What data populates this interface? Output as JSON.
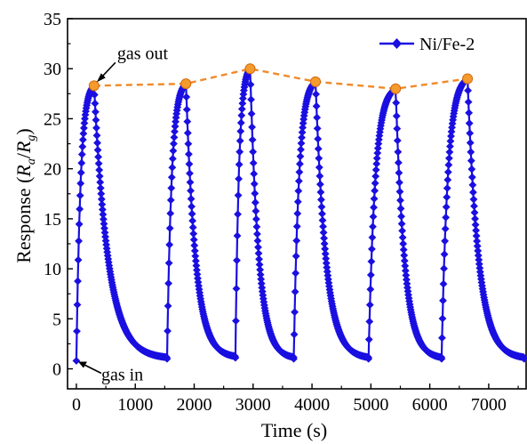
{
  "chart_data": {
    "type": "line",
    "xlabel": "Time (s)",
    "ylabel": {
      "prefix": "Response (",
      "r1": "R",
      "s1": "a",
      "slash": "/",
      "r2": "R",
      "s2": "g",
      "suffix": ")"
    },
    "xlim": [
      -150,
      7650
    ],
    "ylim": [
      -2,
      35
    ],
    "xticks": [
      0,
      1000,
      2000,
      3000,
      4000,
      5000,
      6000,
      7000
    ],
    "yticks": [
      0,
      5,
      10,
      15,
      20,
      25,
      30,
      35
    ],
    "legend": {
      "position": "top-right"
    },
    "colors": {
      "series": "#1a0fe0",
      "peak_line": "#f0892a",
      "peak_marker": "#f59a2c"
    },
    "annotations": [
      {
        "text": "gas out",
        "x": 300,
        "y": 28.3
      },
      {
        "text": "gas in",
        "x": 0,
        "y": 0.8
      }
    ],
    "series": [
      {
        "name": "Ni/Fe-2",
        "marker": "diamond",
        "cycles": [
          {
            "in_t": 0,
            "in_r": 0.8,
            "out_t": 300,
            "peak": 28.3
          },
          {
            "in_t": 1540,
            "in_r": 1.0,
            "out_t": 1860,
            "peak": 28.5
          },
          {
            "in_t": 2700,
            "in_r": 1.1,
            "out_t": 2950,
            "peak": 30.0
          },
          {
            "in_t": 3690,
            "in_r": 1.0,
            "out_t": 4060,
            "peak": 28.7
          },
          {
            "in_t": 4960,
            "in_r": 1.0,
            "out_t": 5420,
            "peak": 28.0
          },
          {
            "in_t": 6200,
            "in_r": 1.0,
            "out_t": 6640,
            "peak": 29.0
          }
        ],
        "end": {
          "t": 7600,
          "r": 1.0
        }
      },
      {
        "name": "",
        "x": [
          300,
          1860,
          2950,
          4060,
          5420,
          6640
        ],
        "y": [
          28.3,
          28.5,
          30.0,
          28.7,
          28.0,
          29.0
        ]
      }
    ]
  }
}
